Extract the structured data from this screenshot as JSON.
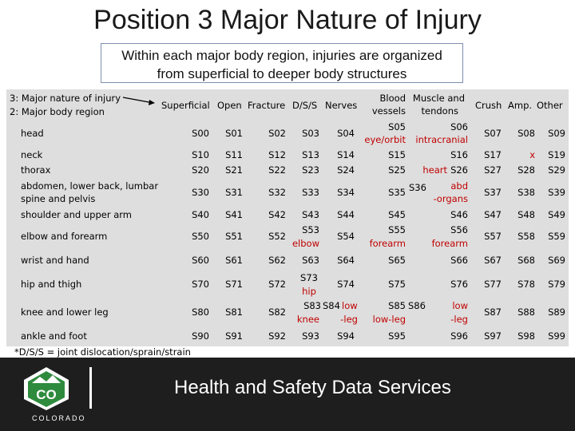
{
  "title": "Position 3 Major Nature of Injury",
  "subtitle_line1": "Within each major body region, injuries are organized",
  "subtitle_line2": "from superficial to deeper body structures",
  "legend": {
    "line1": "3: Major nature of injury",
    "line2": "2: Major body region"
  },
  "headers": {
    "superficial": "Superficial",
    "open": "Open",
    "fracture": "Fracture",
    "dss": "D/S/S",
    "nerves": "Nerves",
    "blood_l1": "Blood",
    "blood_l2": "vessels",
    "muscle_l1": "Muscle and",
    "muscle_l2": "tendons",
    "crush": "Crush",
    "amp": "Amp.",
    "other": "Other"
  },
  "rows": {
    "head": {
      "label": "head",
      "c0": "S00",
      "c1": "S01",
      "c2": "S02",
      "c3": "S03",
      "c4": "S04",
      "c5a": "S05",
      "c5b": "eye/orbit",
      "c6a": "S06",
      "c6b": "intracranial",
      "c7": "S07",
      "c8": "S08",
      "c9": "S09"
    },
    "neck": {
      "label": "neck",
      "c0": "S10",
      "c1": "S11",
      "c2": "S12",
      "c3": "S13",
      "c4": "S14",
      "c5": "S15",
      "c6": "S16",
      "c7": "S17",
      "c8": "x",
      "c9": "S19"
    },
    "thorax": {
      "label": "thorax",
      "c0": "S20",
      "c1": "S21",
      "c2": "S22",
      "c3": "S23",
      "c4": "S24",
      "c5": "S25",
      "c6a": "heart",
      "c6b": "S26",
      "c7": "S27",
      "c8": "S28",
      "c9": "S29"
    },
    "abdomen": {
      "label1": "abdomen, lower back, lumbar",
      "label2": "spine and pelvis",
      "c0": "S30",
      "c1": "S31",
      "c2": "S32",
      "c3": "S33",
      "c4": "S34",
      "c5": "S35",
      "c6a": "S36",
      "c6b": "abd",
      "c6c": "-organs",
      "c7": "S37",
      "c8": "S38",
      "c9": "S39"
    },
    "shoulder": {
      "label": "shoulder and upper arm",
      "c0": "S40",
      "c1": "S41",
      "c2": "S42",
      "c3": "S43",
      "c4": "S44",
      "c5": "S45",
      "c6": "S46",
      "c7": "S47",
      "c8": "S48",
      "c9": "S49"
    },
    "elbow": {
      "label": "elbow and forearm",
      "c0": "S50",
      "c1": "S51",
      "c2": "S52",
      "c3a": "S53",
      "c3b": "elbow",
      "c4": "S54",
      "c5a": "S55",
      "c5b": "forearm",
      "c6a": "S56",
      "c6b": "forearm",
      "c7": "S57",
      "c8": "S58",
      "c9": "S59"
    },
    "wrist": {
      "label": "wrist and hand",
      "c0": "S60",
      "c1": "S61",
      "c2": "S62",
      "c3": "S63",
      "c4": "S64",
      "c5": "S65",
      "c6": "S66",
      "c7": "S67",
      "c8": "S68",
      "c9": "S69"
    },
    "hip": {
      "label": "hip and thigh",
      "c0": "S70",
      "c1": "S71",
      "c2": "S72",
      "c3a": "S73",
      "c3b": "hip",
      "c4": "S74",
      "c5": "S75",
      "c6": "S76",
      "c7": "S77",
      "c8": "S78",
      "c9": "S79"
    },
    "knee": {
      "label": "knee and lower leg",
      "c0": "S80",
      "c1": "S81",
      "c2": "S82",
      "c3a": "S83",
      "c3b": "knee",
      "c4a": "S84",
      "c4b": "low",
      "c4c": "-leg",
      "c5a": "S85",
      "c5b": "low-leg",
      "c6a": "S86",
      "c6b": "low",
      "c6c": "-leg",
      "c7": "S87",
      "c8": "S88",
      "c9": "S89"
    },
    "ankle": {
      "label": "ankle and foot",
      "c0": "S90",
      "c1": "S91",
      "c2": "S92",
      "c3": "S93",
      "c4": "S94",
      "c5": "S95",
      "c6": "S96",
      "c7": "S97",
      "c8": "S98",
      "c9": "S99"
    }
  },
  "footnote": "*D/S/S = joint dislocation/sprain/strain",
  "footer": {
    "logo_letters": "CO",
    "logo_word": "COLORADO",
    "text": "Health and Safety Data Services"
  },
  "colors": {
    "accent_red": "#c00000",
    "table_bg": "#dedede",
    "footer_bg": "#1e1e1e",
    "logo_green": "#2e8b3e"
  }
}
